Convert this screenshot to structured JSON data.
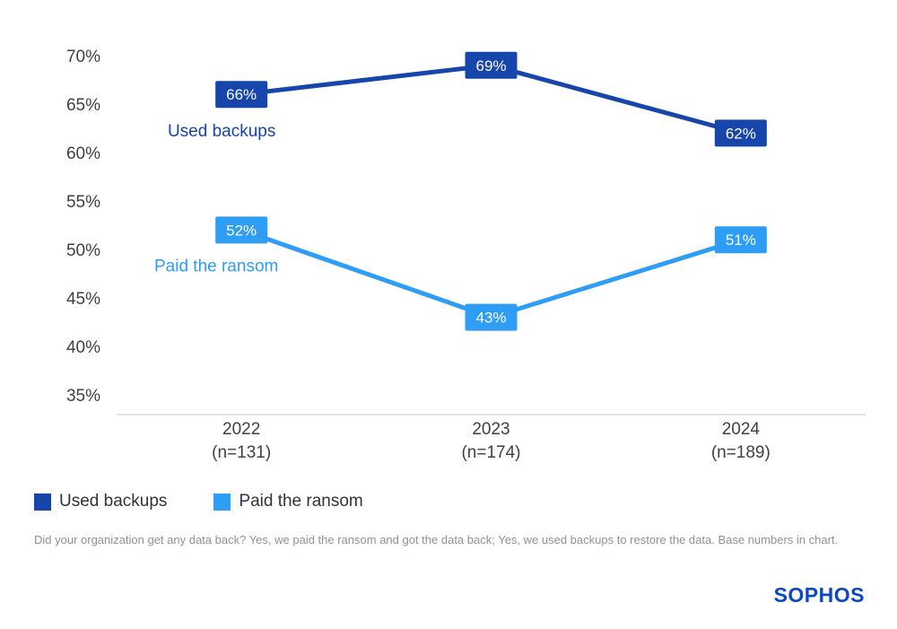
{
  "chart_data": {
    "type": "line",
    "title": "",
    "categories": [
      {
        "label": "2022",
        "sub": "(n=131)"
      },
      {
        "label": "2023",
        "sub": "(n=174)"
      },
      {
        "label": "2024",
        "sub": "(n=189)"
      }
    ],
    "series": [
      {
        "name": "Used backups",
        "color": "#1645ab",
        "values": [
          66,
          69,
          62
        ]
      },
      {
        "name": "Paid the ransom",
        "color": "#2e9df6",
        "values": [
          52,
          43,
          51
        ]
      }
    ],
    "yaxis": {
      "min": 35,
      "max": 70,
      "step": 5,
      "suffix": "%"
    },
    "grid": false,
    "legend_position": "bottom"
  },
  "footnote": "Did your organization get any data back? Yes, we paid the ransom and got the data back; Yes, we used backups to restore the data. Base numbers in chart.",
  "logo_text": "SOPHOS"
}
